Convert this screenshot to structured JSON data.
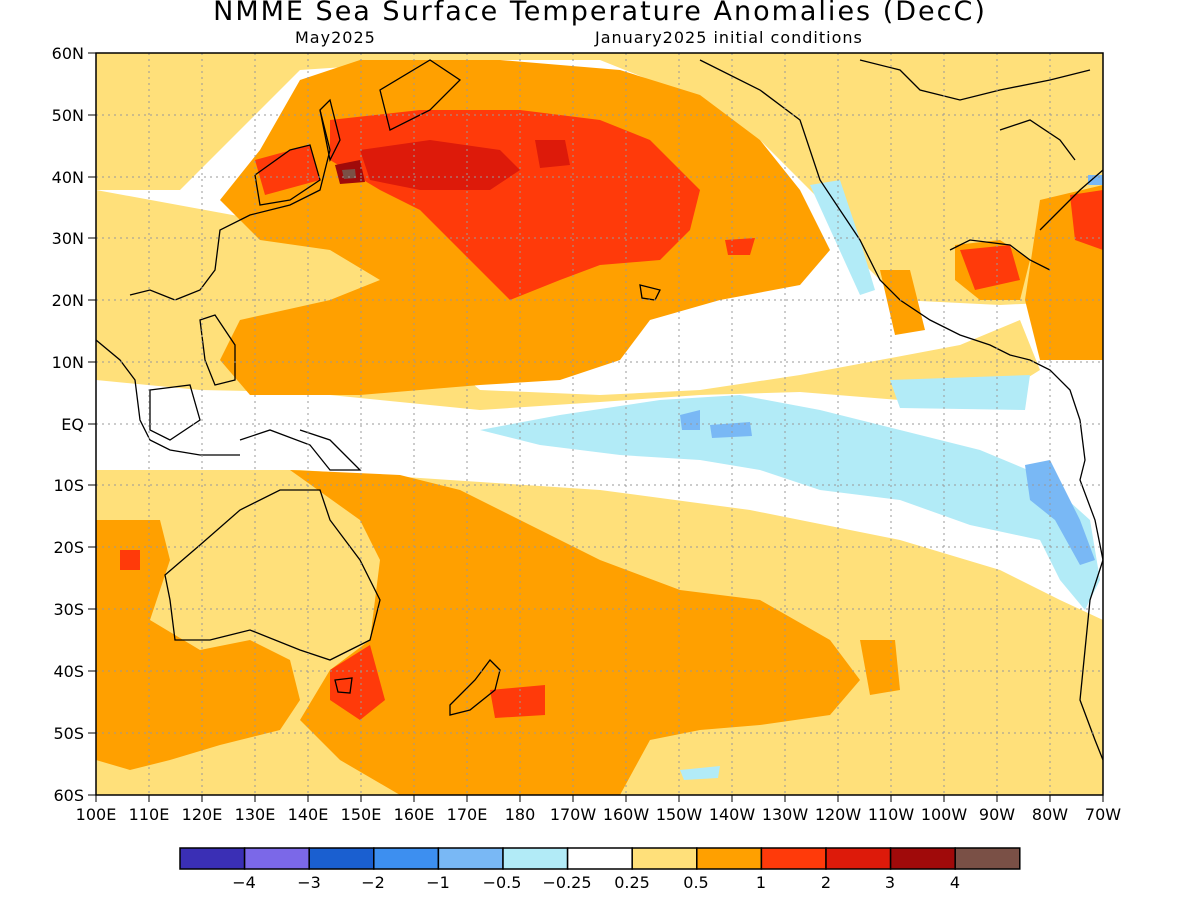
{
  "title": "NMME Sea Surface Temperature Anomalies (DecC)",
  "subtitle_left": "May2025",
  "subtitle_right": "January2025 initial conditions",
  "lat_labels": [
    "60N",
    "50N",
    "40N",
    "30N",
    "20N",
    "10N",
    "EQ",
    "10S",
    "20S",
    "30S",
    "40S",
    "50S",
    "60S"
  ],
  "lon_labels": [
    "100E",
    "110E",
    "120E",
    "130E",
    "140E",
    "150E",
    "160E",
    "170E",
    "180",
    "170W",
    "160W",
    "150W",
    "140W",
    "130W",
    "120W",
    "110W",
    "100W",
    "90W",
    "80W",
    "70W"
  ],
  "colorbar": {
    "colors": [
      "#3a2fb5",
      "#7b68e8",
      "#1a5fd0",
      "#3d8ff0",
      "#79b8f5",
      "#b2ebf7",
      "#ffffff",
      "#ffe07a",
      "#ffa000",
      "#ff3a0a",
      "#dd1a0a",
      "#a00a0a",
      "#7a5046"
    ],
    "labels": [
      "−4",
      "−3",
      "−2",
      "−1",
      "−0.5",
      "−0.25",
      "0.25",
      "0.5",
      "1",
      "2",
      "3",
      "4"
    ]
  }
}
